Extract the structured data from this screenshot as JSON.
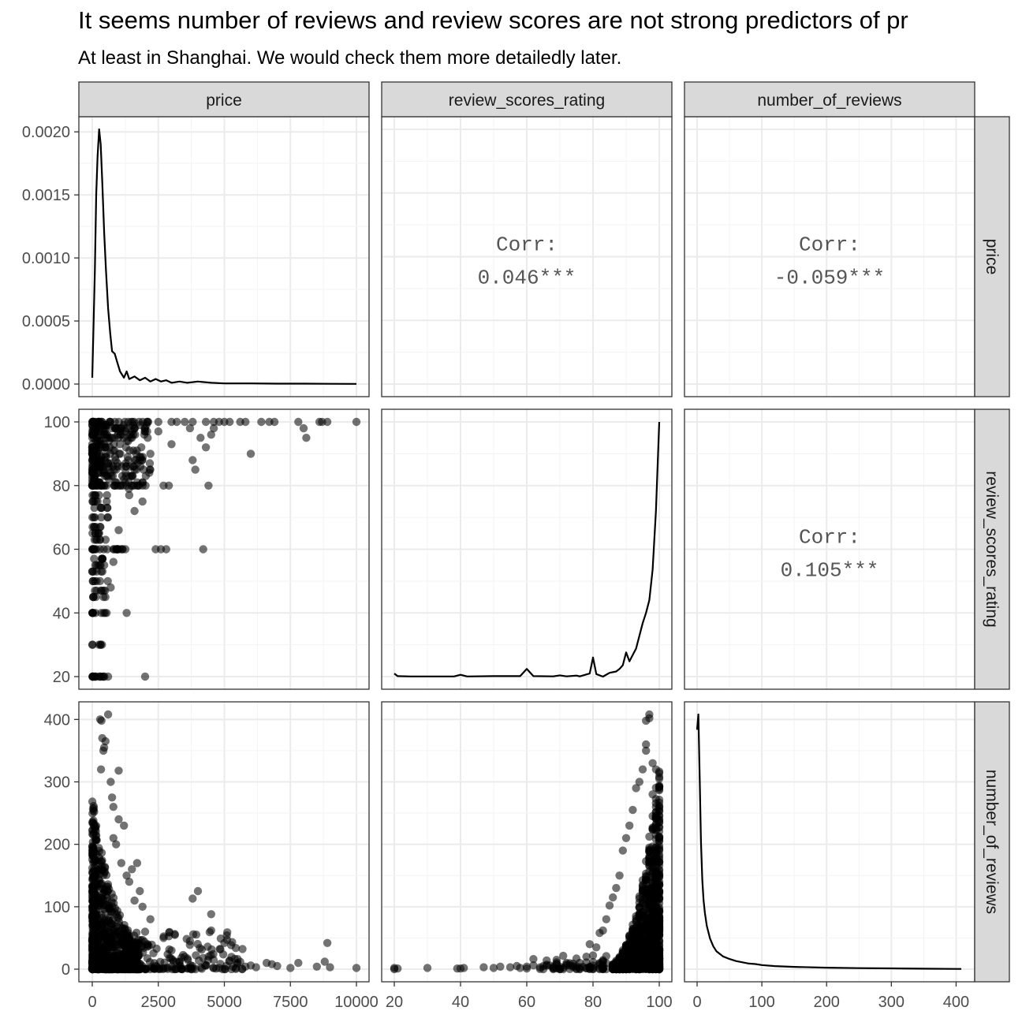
{
  "title": "It seems number of reviews and review scores are not strong predictors of pr",
  "subtitle": "At least in Shanghai. We would check them more detailedly later.",
  "chart_data": {
    "type": "scatter-matrix",
    "variables": [
      "price",
      "review_scores_rating",
      "number_of_reviews"
    ],
    "axes": {
      "price": {
        "range": [
          0,
          10000
        ],
        "ticks": [
          0,
          2500,
          5000,
          7500,
          10000
        ],
        "tick_labels": [
          "0",
          "2500",
          "5000",
          "7500",
          "10000"
        ]
      },
      "review_scores_rating": {
        "range": [
          20,
          100
        ],
        "ticks": [
          20,
          40,
          60,
          80,
          100
        ],
        "tick_labels": [
          "20",
          "40",
          "60",
          "80",
          "100"
        ]
      },
      "number_of_reviews": {
        "range": [
          0,
          408
        ],
        "ticks": [
          0,
          100,
          200,
          300,
          400
        ],
        "tick_labels": [
          "0",
          "100",
          "200",
          "300",
          "400"
        ]
      },
      "price_density": {
        "range": [
          0,
          0.00202
        ],
        "ticks": [
          0,
          0.0005,
          0.001,
          0.0015,
          0.002
        ],
        "tick_labels": [
          "0.0000",
          "0.0005",
          "0.0010",
          "0.0015",
          "0.0020"
        ]
      }
    },
    "correlations": [
      {
        "row": "price",
        "col": "review_scores_rating",
        "label": "Corr:",
        "value": "0.046***"
      },
      {
        "row": "price",
        "col": "number_of_reviews",
        "label": "Corr:",
        "value": "-0.059***"
      },
      {
        "row": "review_scores_rating",
        "col": "number_of_reviews",
        "label": "Corr:",
        "value": "0.105***"
      }
    ],
    "densities": {
      "price": [
        [
          0,
          5e-05
        ],
        [
          100,
          0.0009
        ],
        [
          150,
          0.0015
        ],
        [
          200,
          0.0018
        ],
        [
          260,
          0.00202
        ],
        [
          320,
          0.0019
        ],
        [
          380,
          0.0016
        ],
        [
          450,
          0.0012
        ],
        [
          520,
          0.0009
        ],
        [
          600,
          0.0006
        ],
        [
          680,
          0.0004
        ],
        [
          750,
          0.00026
        ],
        [
          850,
          0.00024
        ],
        [
          950,
          0.00017
        ],
        [
          1050,
          0.0001
        ],
        [
          1200,
          5e-05
        ],
        [
          1300,
          0.0001
        ],
        [
          1400,
          4e-05
        ],
        [
          1600,
          6e-05
        ],
        [
          1800,
          3e-05
        ],
        [
          2000,
          5e-05
        ],
        [
          2200,
          2e-05
        ],
        [
          2400,
          4e-05
        ],
        [
          2600,
          2e-05
        ],
        [
          2800,
          3e-05
        ],
        [
          3000,
          1e-05
        ],
        [
          3300,
          2e-05
        ],
        [
          3600,
          1e-05
        ],
        [
          4000,
          2e-05
        ],
        [
          4500,
          1e-05
        ],
        [
          5000,
          5e-06
        ],
        [
          6000,
          5e-06
        ],
        [
          7000,
          3e-06
        ],
        [
          8000,
          3e-06
        ],
        [
          9000,
          2e-06
        ],
        [
          10000,
          1e-06
        ]
      ],
      "review_scores_rating": [
        [
          20,
          0.012
        ],
        [
          21,
          0.002
        ],
        [
          25,
          0.0005
        ],
        [
          38,
          0.0005
        ],
        [
          40,
          0.007
        ],
        [
          42,
          0.0005
        ],
        [
          50,
          0.002
        ],
        [
          58,
          0.002
        ],
        [
          60,
          0.03
        ],
        [
          62,
          0.002
        ],
        [
          68,
          0.001
        ],
        [
          70,
          0.005
        ],
        [
          72,
          0.001
        ],
        [
          75,
          0.004
        ],
        [
          76,
          0.001
        ],
        [
          79,
          0.012
        ],
        [
          80,
          0.075
        ],
        [
          81,
          0.01
        ],
        [
          83,
          0.0
        ],
        [
          85,
          0.015
        ],
        [
          87,
          0.02
        ],
        [
          88,
          0.03
        ],
        [
          89,
          0.045
        ],
        [
          90,
          0.095
        ],
        [
          91,
          0.06
        ],
        [
          92,
          0.085
        ],
        [
          93,
          0.11
        ],
        [
          94,
          0.16
        ],
        [
          95,
          0.21
        ],
        [
          96,
          0.25
        ],
        [
          97,
          0.3
        ],
        [
          98,
          0.42
        ],
        [
          99,
          0.65
        ],
        [
          100,
          1.0
        ]
      ],
      "number_of_reviews": [
        [
          0,
          0.94
        ],
        [
          2,
          1.0
        ],
        [
          4,
          0.75
        ],
        [
          6,
          0.5
        ],
        [
          8,
          0.35
        ],
        [
          10,
          0.27
        ],
        [
          12,
          0.22
        ],
        [
          15,
          0.17
        ],
        [
          20,
          0.12
        ],
        [
          25,
          0.09
        ],
        [
          30,
          0.07
        ],
        [
          40,
          0.05
        ],
        [
          50,
          0.04
        ],
        [
          60,
          0.032
        ],
        [
          70,
          0.027
        ],
        [
          80,
          0.022
        ],
        [
          90,
          0.02
        ],
        [
          100,
          0.016
        ],
        [
          120,
          0.012
        ],
        [
          150,
          0.009
        ],
        [
          200,
          0.006
        ],
        [
          250,
          0.004
        ],
        [
          300,
          0.003
        ],
        [
          350,
          0.002
        ],
        [
          400,
          0.001
        ],
        [
          408,
          0.001
        ]
      ]
    },
    "grid": true,
    "point_style": "semi-transparent black circles"
  }
}
